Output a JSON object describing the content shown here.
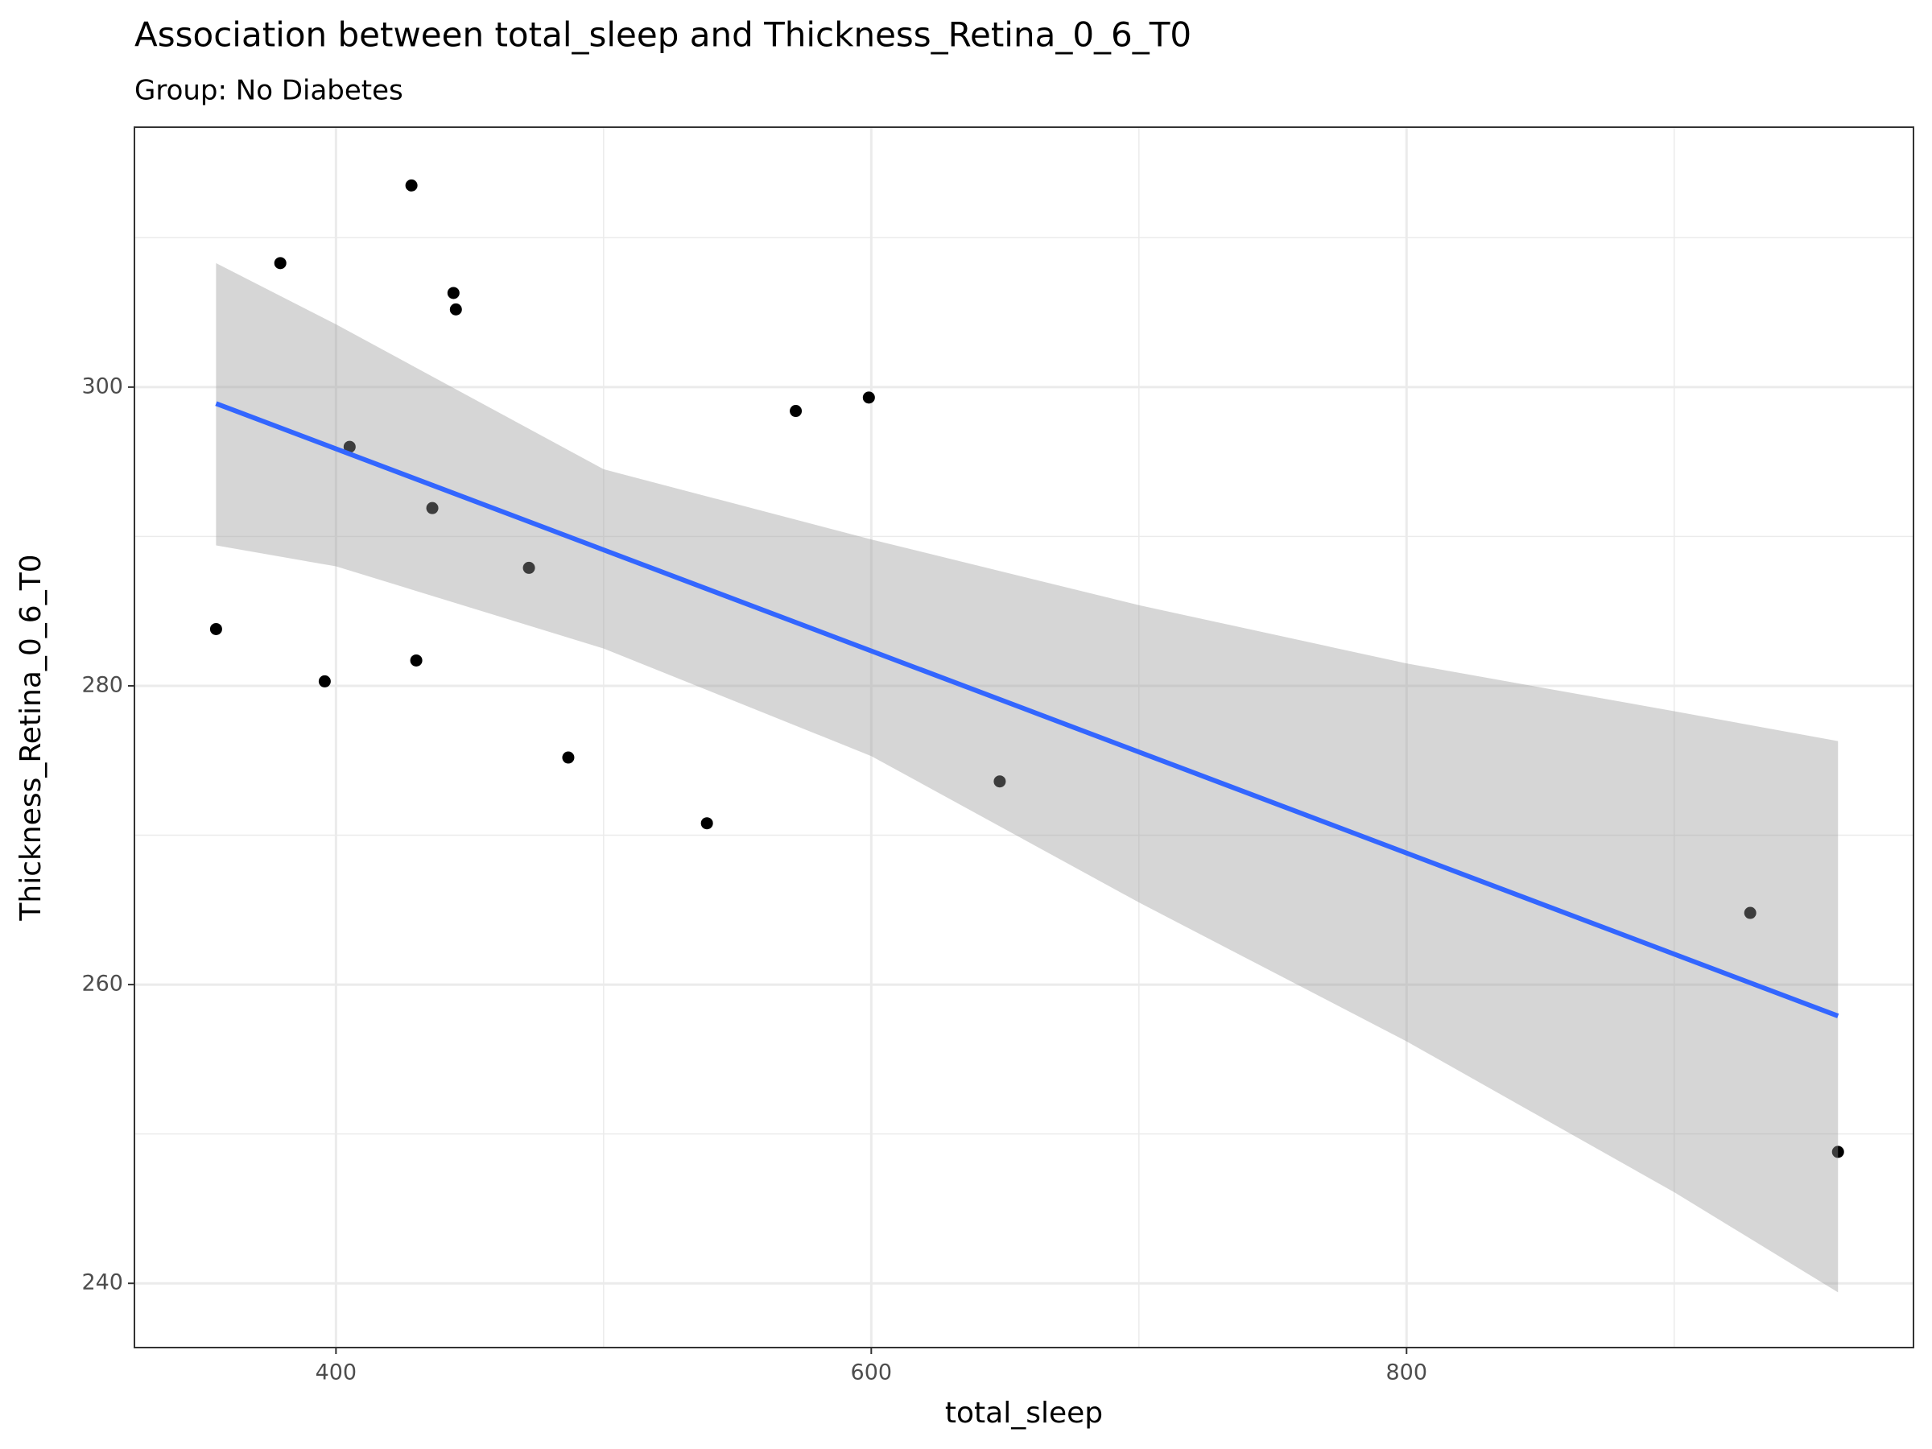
{
  "chart_data": {
    "type": "scatter",
    "title": "Association between total_sleep and Thickness_Retina_0_6_T0",
    "subtitle": "Group: No Diabetes",
    "x_label": "total_sleep",
    "y_label": "Thickness_Retina_0_6_T0",
    "series": [
      {
        "color": "#000000",
        "x": [
          355.2,
          379.2,
          395.8,
          405.1,
          428.2,
          430.0,
          436.0,
          443.9,
          444.8,
          472.1,
          486.8,
          538.6,
          571.8,
          599.1,
          648.0,
          928.4,
          961.2
        ],
        "values": [
          283.8,
          308.3,
          280.3,
          296.0,
          313.5,
          281.7,
          291.9,
          306.3,
          305.2,
          287.9,
          275.2,
          270.8,
          298.4,
          299.3,
          273.6,
          264.8,
          248.8
        ]
      }
    ],
    "fit": {
      "color": "#3366ff",
      "x": [
        355.2,
        961.2
      ],
      "values": [
        298.9,
        257.9
      ]
    },
    "ribbon": {
      "color": "#999999",
      "x": [
        355.2,
        400,
        500,
        600,
        700,
        800,
        900,
        961.2
      ],
      "lower": [
        289.4,
        288.0,
        282.5,
        275.3,
        265.5,
        256.2,
        246.1,
        239.4
      ],
      "upper": [
        308.3,
        304.2,
        294.5,
        289.8,
        285.4,
        281.5,
        278.3,
        276.3
      ]
    },
    "xlim": [
      324.7,
      989.4
    ],
    "ylim": [
      235.7,
      317.4
    ],
    "xticks": [
      400,
      600,
      800
    ],
    "yticks": [
      240,
      260,
      280,
      300
    ],
    "xminor": [
      500,
      700,
      900
    ],
    "yminor": [
      250,
      270,
      290,
      310
    ],
    "grid": true
  }
}
